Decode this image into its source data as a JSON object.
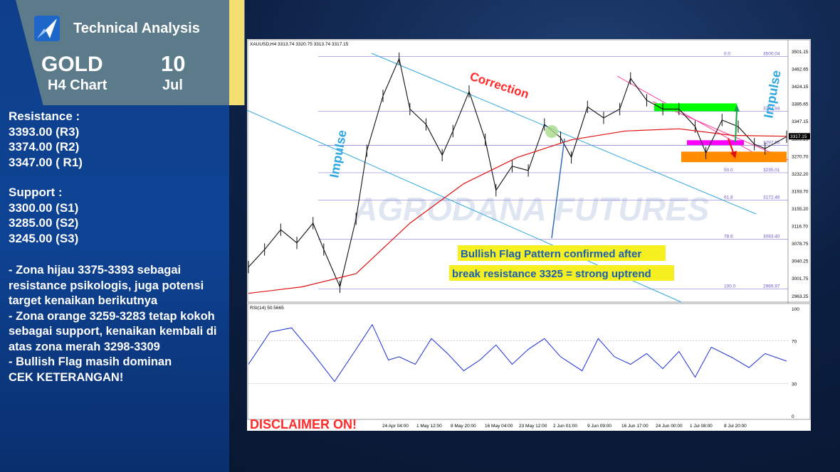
{
  "header": {
    "title": "Technical Analysis",
    "symbol": "GOLD",
    "timeframe": "H4 Chart",
    "day": "10",
    "month": "Jul"
  },
  "levels": {
    "resistance_title": "Resistance :",
    "resistance": [
      "3393.00 (R3)",
      "3374.00 (R2)",
      "3347.00 ( R1)"
    ],
    "support_title": "Support :",
    "support": [
      "3300.00 (S1)",
      "3285.00 (S2)",
      "3245.00 (S3)"
    ]
  },
  "notes": [
    "- Zona hijau 3375-3393 sebagai resistance psikologis, juga potensi target kenaikan berikutnya",
    "- Zona orange 3259-3283 tetap kokoh sebagai support, kenaikan kembali di atas zona merah 3298-3309",
    "- Bullish Flag masih dominan",
    "CEK KETERANGAN!"
  ],
  "colors": {
    "panel_blue": "#0e4394",
    "header_gray": "#5b7a8a",
    "accent_yellow": "#f4df72",
    "green_zone": "#00ff00",
    "orange_zone": "#ff8c00",
    "magenta_zone": "#ff00ff",
    "annotation_red": "#ff2a2a",
    "annotation_blue": "#2fa8e0"
  },
  "chart_data": [
    {
      "type": "line",
      "instrument_label": "XAUUSD,H4  3313.74 3320.75 3313.74 3317.15",
      "ylim": [
        2945,
        3520
      ],
      "price_ticks": [
        "3501.15",
        "3462.65",
        "3424.15",
        "3385.65",
        "3347.15",
        "3309.20",
        "3270.70",
        "3232.20",
        "3193.70",
        "3155.20",
        "3116.70",
        "3078.75",
        "3040.25",
        "3001.75",
        "2963.25"
      ],
      "last_price": "3317.15",
      "x_ticks": [
        "24 Apr 04:00",
        "1 May 12:00",
        "8 May 20:00",
        "16 May 04:00",
        "23 May 12:00",
        "2 Jun 01:00",
        "9 Jun 09:00",
        "16 Jun 17:00",
        "24 Jun 00:00",
        "1 Jul 08:00",
        "8 Jul 20:00"
      ],
      "fibonacci": [
        {
          "level": "0.0",
          "price": "3500.04",
          "value": 3500.04
        },
        {
          "level": "23.6",
          "price": "3374.94",
          "value": 3374.94
        },
        {
          "level": "38.2",
          "price": "3297.55",
          "value": 3297.55
        },
        {
          "level": "50.0",
          "price": "3235.01",
          "value": 3235.01
        },
        {
          "level": "61.8",
          "price": "3172.46",
          "value": 3172.46
        },
        {
          "level": "78.6",
          "price": "3083.40",
          "value": 3083.4
        },
        {
          "level": "100.0",
          "price": "2969.97",
          "value": 2969.97
        }
      ],
      "series": [
        {
          "name": "price",
          "x": [
            0,
            3,
            6,
            9,
            12,
            14,
            17,
            20,
            22,
            25,
            28,
            30,
            33,
            36,
            38,
            41,
            44,
            46,
            49,
            52,
            55,
            58,
            60,
            63,
            66,
            69,
            71,
            74,
            77,
            80,
            83,
            85,
            88,
            91,
            94,
            96,
            100
          ],
          "y": [
            3020,
            3060,
            3105,
            3075,
            3120,
            3060,
            2975,
            3130,
            3285,
            3410,
            3495,
            3380,
            3345,
            3275,
            3330,
            3420,
            3310,
            3195,
            3250,
            3240,
            3345,
            3315,
            3270,
            3385,
            3360,
            3380,
            3450,
            3400,
            3380,
            3380,
            3340,
            3280,
            3355,
            3340,
            3300,
            3290,
            3317
          ]
        },
        {
          "name": "moving average",
          "x": [
            0,
            10,
            20,
            30,
            40,
            50,
            60,
            70,
            80,
            90,
            100
          ],
          "y": [
            2960,
            2975,
            3005,
            3120,
            3210,
            3270,
            3310,
            3330,
            3335,
            3320,
            3318
          ]
        }
      ],
      "zones": [
        {
          "color": "green",
          "from": 3375,
          "to": 3393
        },
        {
          "color": "magenta",
          "from": 3298,
          "to": 3309
        },
        {
          "color": "orange",
          "from": 3259,
          "to": 3283
        }
      ],
      "annotations": [
        "Impulse",
        "Correction",
        "Impulse",
        "Bullish Flag Pattern confirmed after",
        "break resistance 3325 = strong uptrend",
        "DISCLAIMER ON!"
      ]
    },
    {
      "type": "line",
      "title": "RSI(14) 50.5665",
      "ylim": [
        0,
        100
      ],
      "y_ticks": [
        "100",
        "70",
        "30",
        "0"
      ],
      "series": [
        {
          "name": "RSI(14)",
          "x": [
            0,
            4,
            8,
            12,
            16,
            20,
            23,
            26,
            28,
            31,
            34,
            37,
            40,
            43,
            46,
            49,
            52,
            55,
            58,
            62,
            65,
            68,
            71,
            74,
            77,
            80,
            83,
            86,
            90,
            93,
            96,
            100
          ],
          "y": [
            48,
            78,
            82,
            58,
            32,
            62,
            85,
            52,
            55,
            48,
            72,
            58,
            42,
            52,
            66,
            48,
            62,
            72,
            55,
            42,
            72,
            55,
            48,
            58,
            44,
            60,
            36,
            64,
            54,
            45,
            58,
            51
          ]
        }
      ]
    }
  ]
}
